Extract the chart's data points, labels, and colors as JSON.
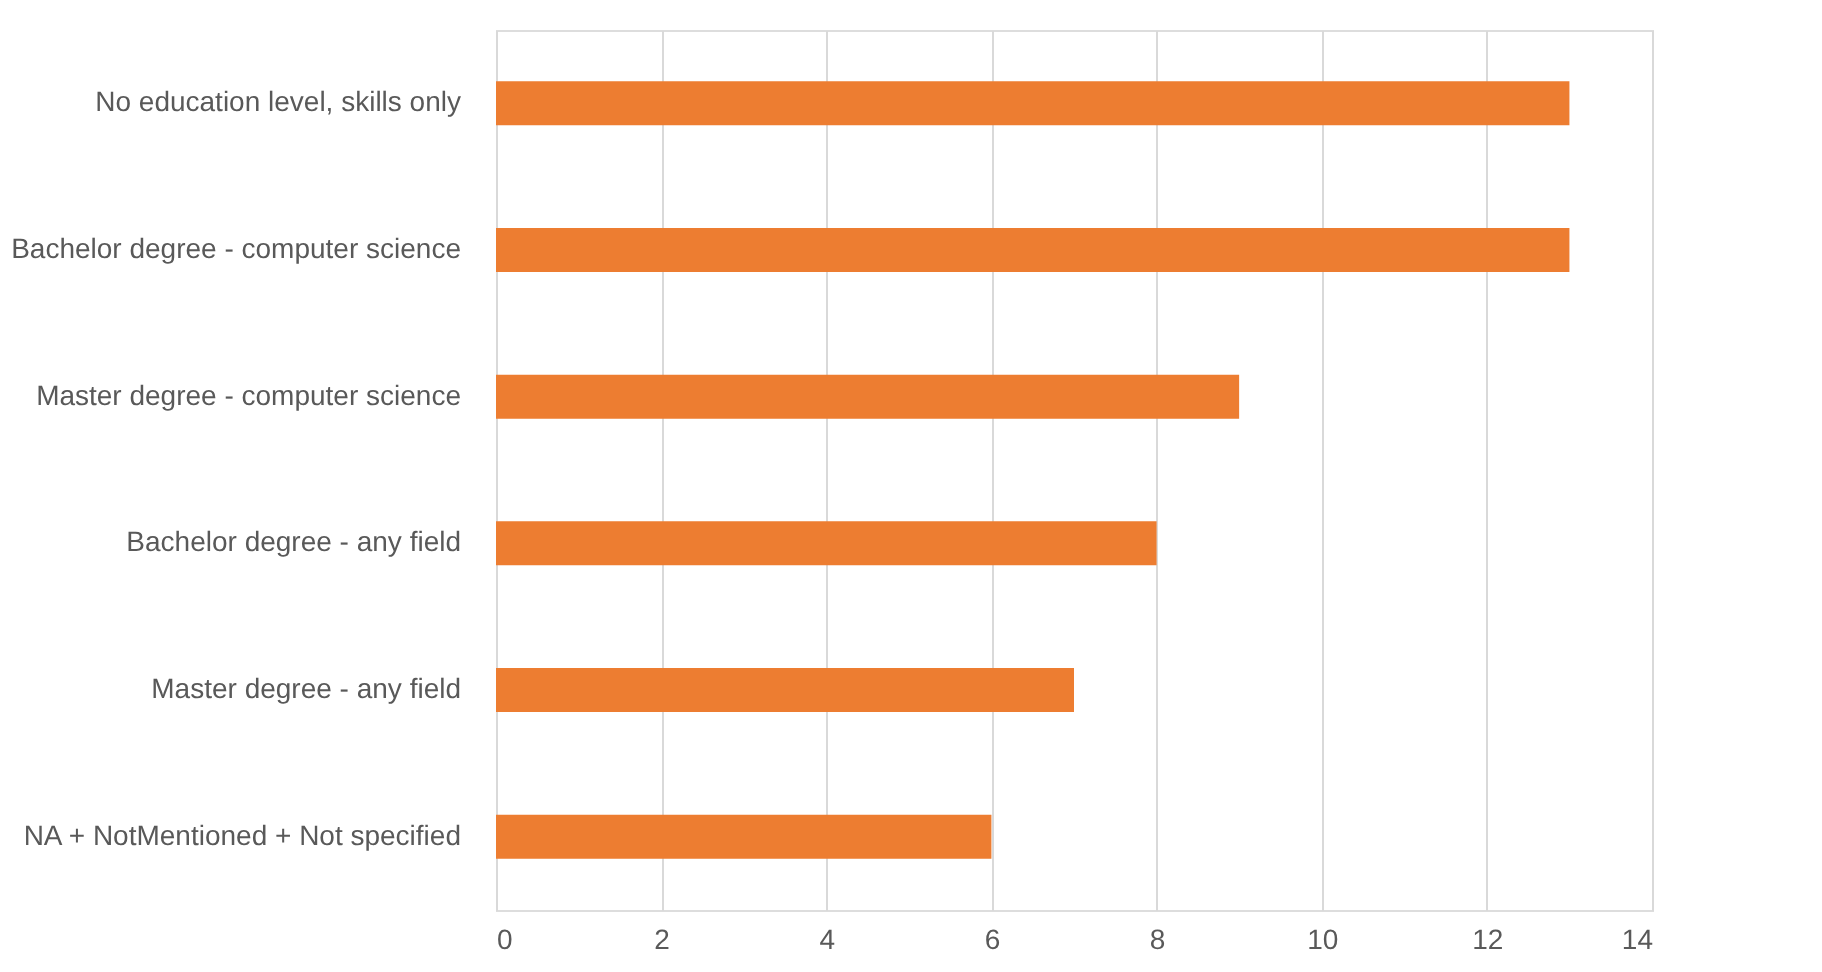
{
  "chart_data": {
    "type": "bar",
    "orientation": "horizontal",
    "categories": [
      "No education level, skills only",
      "Bachelor degree - computer science",
      "Master degree - computer science",
      "Bachelor degree - any field",
      "Master degree - any field",
      "NA + NotMentioned + Not specified"
    ],
    "values": [
      13,
      13,
      9,
      8,
      7,
      6
    ],
    "color": "#ed7d31",
    "xlim": [
      0,
      14
    ],
    "xticks": [
      0,
      2,
      4,
      6,
      8,
      10,
      12,
      14
    ],
    "grid": "x"
  }
}
